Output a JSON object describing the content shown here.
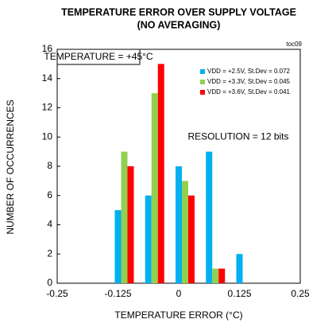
{
  "chart_data": {
    "type": "bar",
    "title": [
      "TEMPERATURE ERROR OVER SUPPLY VOLTAGE",
      "(NO AVERAGING)"
    ],
    "figure_id": "toc09",
    "xlabel": "TEMPERATURE  ERROR (°C)",
    "ylabel": "NUMBER OF OCCURRENCES",
    "annotations": [
      "TEMPERATURE = +45°C",
      "RESOLUTION = 12 bits"
    ],
    "x": [
      -0.125,
      -0.0625,
      0,
      0.0625,
      0.125
    ],
    "series": [
      {
        "name": "VDD = +2.5V, St.Dev = 0.072",
        "color": "#00b0f0",
        "values": [
          5,
          6,
          8,
          9,
          2
        ]
      },
      {
        "name": "VDD = +3.3V, St.Dev = 0.045",
        "color": "#92d050",
        "values": [
          9,
          13,
          7,
          1,
          null
        ]
      },
      {
        "name": "VDD = +3.6V, St.Dev = 0.041",
        "color": "#ff0000",
        "values": [
          8,
          15,
          6,
          1,
          null
        ]
      }
    ],
    "xlim": [
      -0.25,
      0.25
    ],
    "xticks": [
      -0.25,
      -0.125,
      0,
      0.125,
      0.25
    ],
    "ylim": [
      0,
      16
    ],
    "yticks": [
      0,
      2,
      4,
      6,
      8,
      10,
      12,
      14,
      16
    ],
    "grid": false,
    "legend": "upper right"
  }
}
